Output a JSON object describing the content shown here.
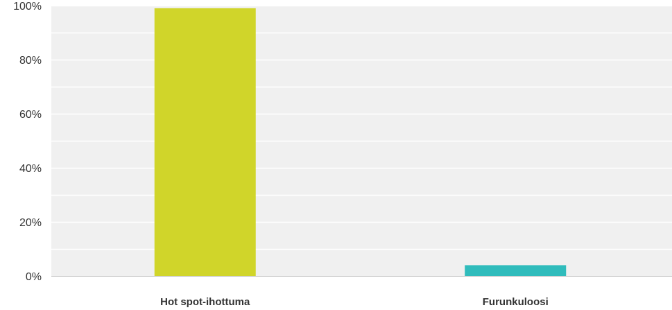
{
  "chart_data": {
    "type": "bar",
    "categories": [
      "Hot spot-ihottuma",
      "Furunkuloosi"
    ],
    "values": [
      99,
      4
    ],
    "bar_colors": [
      "#d0d52a",
      "#30bcbc"
    ],
    "ylim": [
      0,
      100
    ],
    "y_ticks": [
      0,
      20,
      40,
      60,
      80,
      100
    ],
    "y_tick_labels": [
      "0%",
      "20%",
      "40%",
      "60%",
      "80%",
      "100%"
    ],
    "grid": true,
    "grid_minor": true,
    "plot_background": "#f0f0f0",
    "gridline_color": "#ffffff",
    "axis_color": "#cccccc",
    "title": "",
    "xlabel": "",
    "ylabel": "",
    "legend": "none"
  }
}
